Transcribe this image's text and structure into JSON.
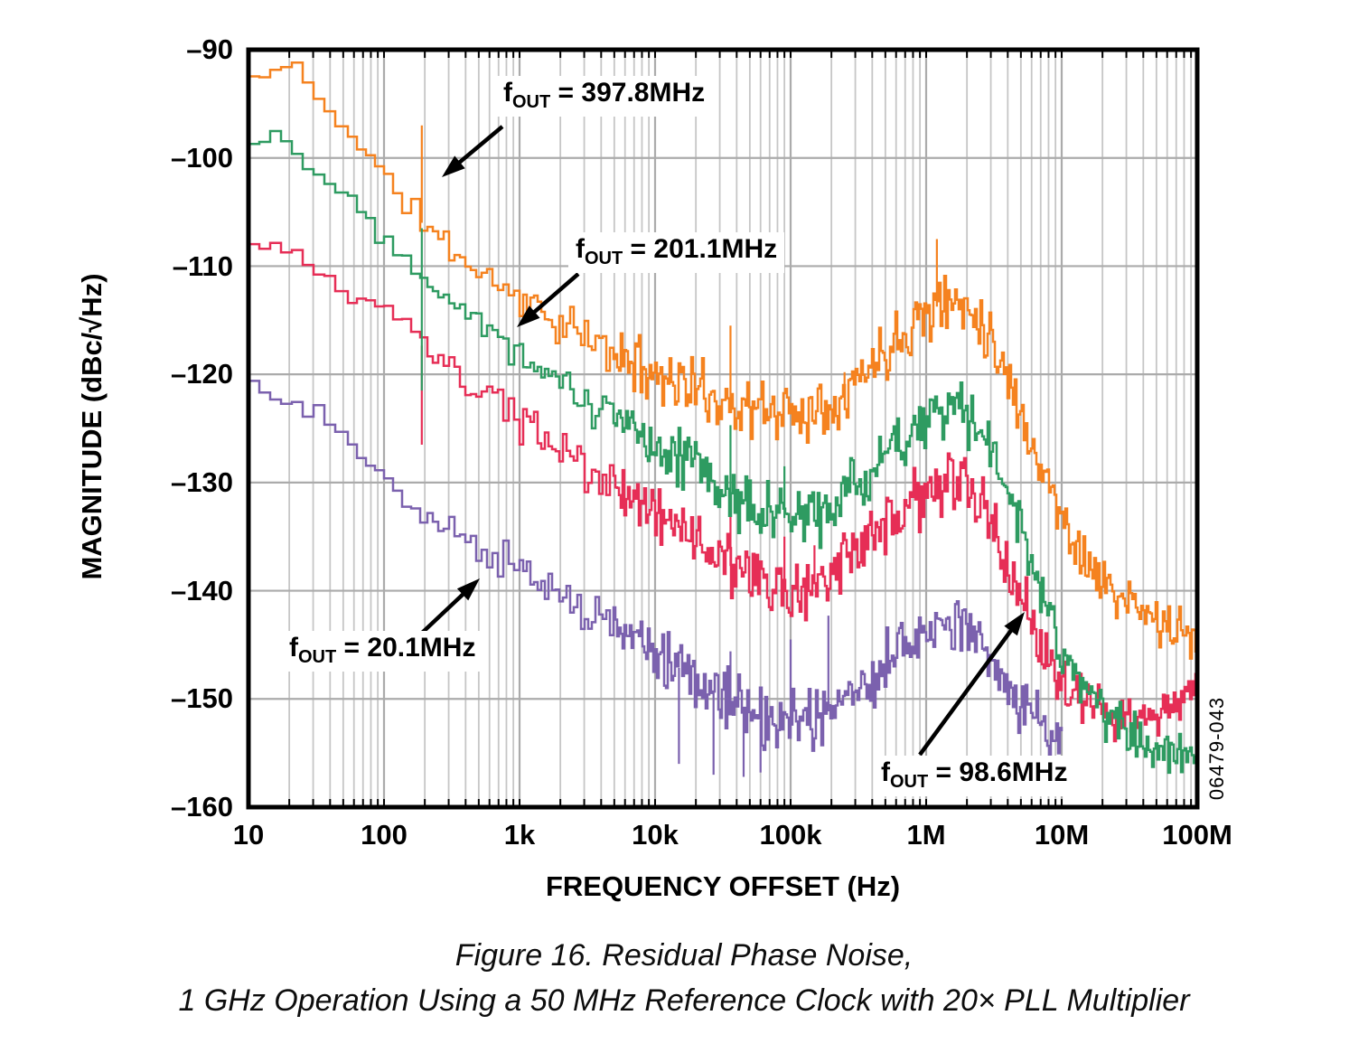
{
  "chart_data": {
    "type": "line",
    "title": "",
    "xlabel": "FREQUENCY OFFSET (Hz)",
    "ylabel": "MAGNITUDE (dBc/√Hz)",
    "x_scale": "log",
    "xlim": [
      10,
      100000000
    ],
    "ylim": [
      -160,
      -90
    ],
    "grid": "major-horizontal, major+minor-vertical",
    "x_ticks": [
      "10",
      "100",
      "1k",
      "10k",
      "100k",
      "1M",
      "10M",
      "100M"
    ],
    "x_tick_values": [
      10,
      100,
      1000,
      10000,
      100000,
      1000000,
      10000000,
      100000000
    ],
    "y_ticks": [
      "–90",
      "–100",
      "–110",
      "–120",
      "–130",
      "–140",
      "–150",
      "–160"
    ],
    "y_tick_values": [
      -90,
      -100,
      -110,
      -120,
      -130,
      -140,
      -150,
      -160
    ],
    "series": [
      {
        "name": "fOUT = 397.8MHz",
        "color": "#F5821F",
        "points": [
          [
            10,
            -92.5
          ],
          [
            13,
            -92.8
          ],
          [
            16,
            -91.6
          ],
          [
            20,
            -90.7
          ],
          [
            24,
            -93.0
          ],
          [
            30,
            -94.6
          ],
          [
            40,
            -96.0
          ],
          [
            50,
            -97.2
          ],
          [
            70,
            -99.6
          ],
          [
            100,
            -102.3
          ],
          [
            150,
            -104.6
          ],
          [
            200,
            -106.3
          ],
          [
            300,
            -108.4
          ],
          [
            500,
            -110.6
          ],
          [
            700,
            -111.8
          ],
          [
            1000,
            -113.0
          ],
          [
            2000,
            -115.4
          ],
          [
            3000,
            -116.8
          ],
          [
            5000,
            -118.2
          ],
          [
            10000,
            -119.8
          ],
          [
            20000,
            -121.4
          ],
          [
            30000,
            -122.4
          ],
          [
            50000,
            -123.2
          ],
          [
            70000,
            -123.4
          ],
          [
            100000,
            -123.4
          ],
          [
            150000,
            -123.2
          ],
          [
            200000,
            -122.4
          ],
          [
            300000,
            -120.6
          ],
          [
            500000,
            -117.6
          ],
          [
            700000,
            -115.6
          ],
          [
            1000000,
            -114.1
          ],
          [
            1500000,
            -113.3
          ],
          [
            2000000,
            -113.6
          ],
          [
            2500000,
            -114.8
          ],
          [
            3000000,
            -116.6
          ],
          [
            4000000,
            -120.4
          ],
          [
            5000000,
            -123.8
          ],
          [
            7000000,
            -128.6
          ],
          [
            10000000,
            -133.4
          ],
          [
            15000000,
            -137.2
          ],
          [
            20000000,
            -139.4
          ],
          [
            30000000,
            -141.2
          ],
          [
            50000000,
            -142.8
          ],
          [
            70000000,
            -143.8
          ],
          [
            100000000,
            -144.6
          ]
        ],
        "spurs": [
          [
            190,
            -97.0
          ],
          [
            36000,
            -115.5
          ],
          [
            250000,
            -119.8
          ],
          [
            1200000,
            -107.5
          ]
        ]
      },
      {
        "name": "fOUT = 201.1MHz",
        "color": "#2E9B61",
        "points": [
          [
            10,
            -98.6
          ],
          [
            14,
            -97.6
          ],
          [
            20,
            -99.2
          ],
          [
            30,
            -101.2
          ],
          [
            50,
            -103.6
          ],
          [
            70,
            -105.4
          ],
          [
            100,
            -107.4
          ],
          [
            150,
            -109.4
          ],
          [
            200,
            -110.8
          ],
          [
            300,
            -112.8
          ],
          [
            500,
            -115.2
          ],
          [
            700,
            -116.6
          ],
          [
            1000,
            -118.0
          ],
          [
            2000,
            -120.8
          ],
          [
            3000,
            -122.4
          ],
          [
            5000,
            -124.2
          ],
          [
            10000,
            -126.2
          ],
          [
            20000,
            -128.6
          ],
          [
            30000,
            -130.4
          ],
          [
            50000,
            -132.2
          ],
          [
            70000,
            -133.0
          ],
          [
            100000,
            -133.4
          ],
          [
            150000,
            -133.0
          ],
          [
            200000,
            -132.2
          ],
          [
            300000,
            -130.4
          ],
          [
            500000,
            -127.4
          ],
          [
            700000,
            -125.4
          ],
          [
            1000000,
            -124.0
          ],
          [
            1500000,
            -123.3
          ],
          [
            2000000,
            -123.8
          ],
          [
            2500000,
            -125.2
          ],
          [
            3000000,
            -127.2
          ],
          [
            4000000,
            -131.0
          ],
          [
            5000000,
            -134.6
          ],
          [
            7000000,
            -140.2
          ],
          [
            10000000,
            -146.0
          ],
          [
            15000000,
            -149.6
          ],
          [
            20000000,
            -151.2
          ],
          [
            30000000,
            -152.8
          ],
          [
            50000000,
            -154.2
          ],
          [
            70000000,
            -155.2
          ],
          [
            100000000,
            -156.4
          ]
        ],
        "spurs": [
          [
            190,
            -106.5
          ],
          [
            190,
            -121.5
          ],
          [
            36000,
            -124.7
          ],
          [
            90000,
            -128.5
          ]
        ]
      },
      {
        "name": "fOUT = 98.6MHz",
        "color": "#E62E56",
        "points": [
          [
            10,
            -108.2
          ],
          [
            14,
            -108.0
          ],
          [
            20,
            -109.0
          ],
          [
            30,
            -110.8
          ],
          [
            50,
            -112.4
          ],
          [
            70,
            -113.4
          ],
          [
            100,
            -114.4
          ],
          [
            150,
            -116.2
          ],
          [
            200,
            -117.6
          ],
          [
            300,
            -119.8
          ],
          [
            500,
            -121.8
          ],
          [
            700,
            -123.2
          ],
          [
            1000,
            -124.4
          ],
          [
            2000,
            -127.2
          ],
          [
            3000,
            -128.8
          ],
          [
            5000,
            -130.4
          ],
          [
            10000,
            -132.6
          ],
          [
            20000,
            -135.2
          ],
          [
            30000,
            -137.0
          ],
          [
            50000,
            -139.0
          ],
          [
            70000,
            -139.8
          ],
          [
            100000,
            -140.0
          ],
          [
            150000,
            -139.4
          ],
          [
            200000,
            -138.6
          ],
          [
            300000,
            -136.8
          ],
          [
            500000,
            -134.2
          ],
          [
            700000,
            -132.4
          ],
          [
            1000000,
            -131.0
          ],
          [
            1500000,
            -130.0
          ],
          [
            2000000,
            -130.6
          ],
          [
            2500000,
            -132.0
          ],
          [
            3000000,
            -134.0
          ],
          [
            4000000,
            -137.8
          ],
          [
            5000000,
            -140.8
          ],
          [
            7000000,
            -144.8
          ],
          [
            10000000,
            -148.4
          ],
          [
            15000000,
            -150.6
          ],
          [
            20000000,
            -151.4
          ],
          [
            30000000,
            -151.6
          ],
          [
            50000000,
            -151.6
          ],
          [
            70000000,
            -151.0
          ],
          [
            100000000,
            -148.8
          ]
        ],
        "spurs": [
          [
            190,
            -126.5
          ],
          [
            36000,
            -133.0
          ],
          [
            90000,
            -135.0
          ],
          [
            150000,
            -135.8
          ]
        ]
      },
      {
        "name": "fOUT = 20.1MHz",
        "color": "#7B61AE",
        "points": [
          [
            10,
            -120.6
          ],
          [
            14,
            -122.4
          ],
          [
            20,
            -122.8
          ],
          [
            30,
            -123.6
          ],
          [
            50,
            -126.0
          ],
          [
            70,
            -128.2
          ],
          [
            100,
            -130.2
          ],
          [
            150,
            -131.8
          ],
          [
            200,
            -133.0
          ],
          [
            300,
            -134.6
          ],
          [
            500,
            -136.2
          ],
          [
            700,
            -137.2
          ],
          [
            1000,
            -138.0
          ],
          [
            2000,
            -140.4
          ],
          [
            3000,
            -141.8
          ],
          [
            5000,
            -143.4
          ],
          [
            10000,
            -145.6
          ],
          [
            20000,
            -148.2
          ],
          [
            30000,
            -149.8
          ],
          [
            50000,
            -151.6
          ],
          [
            70000,
            -152.2
          ],
          [
            100000,
            -152.4
          ],
          [
            150000,
            -151.8
          ],
          [
            200000,
            -151.0
          ],
          [
            300000,
            -149.4
          ],
          [
            500000,
            -146.8
          ],
          [
            700000,
            -144.8
          ],
          [
            1000000,
            -143.4
          ],
          [
            1500000,
            -142.6
          ],
          [
            2000000,
            -143.2
          ],
          [
            2500000,
            -144.8
          ],
          [
            3000000,
            -146.4
          ],
          [
            4000000,
            -148.8
          ],
          [
            5000000,
            -150.6
          ],
          [
            7000000,
            -152.2
          ],
          [
            10000000,
            -152.4
          ]
        ],
        "spurs": [
          [
            15000,
            -156.0
          ],
          [
            27000,
            -157.0
          ],
          [
            36000,
            -145.6
          ],
          [
            45000,
            -157.2
          ],
          [
            60000,
            -156.8
          ],
          [
            100000,
            -144.5
          ],
          [
            190000,
            -142.3
          ]
        ]
      }
    ],
    "annotations": [
      {
        "f_prefix": "f",
        "f_sub": "OUT",
        "text": " = 397.8MHz"
      },
      {
        "f_prefix": "f",
        "f_sub": "OUT",
        "text": " = 201.1MHz"
      },
      {
        "f_prefix": "f",
        "f_sub": "OUT",
        "text": " = 20.1MHz"
      },
      {
        "f_prefix": "f",
        "f_sub": "OUT",
        "text": " = 98.6MHz"
      }
    ]
  },
  "watermark": "06479-043",
  "caption": {
    "line1": "Figure 16. Residual Phase Noise,",
    "line2": "1 GHz Operation Using a 50 MHz Reference Clock with 20× PLL Multiplier"
  }
}
